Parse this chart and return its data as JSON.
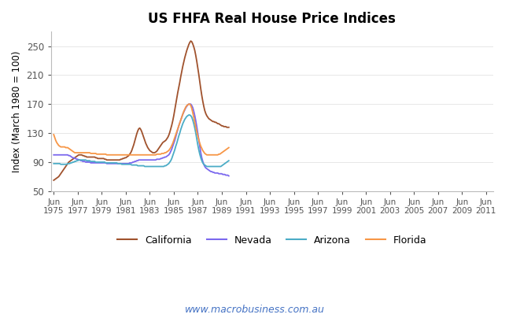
{
  "title": "US FHFA Real House Price Indices",
  "ylabel": "Index (March 1980 = 100)",
  "watermark": "www.macrobusiness.com.au",
  "ylim": [
    50,
    270
  ],
  "yticks": [
    50,
    90,
    130,
    170,
    210,
    250
  ],
  "background_color": "#ffffff",
  "series_order": [
    "California",
    "Nevada",
    "Arizona",
    "Florida"
  ],
  "series": {
    "California": {
      "color": "#A0522D",
      "data": [
        65,
        66,
        67,
        68,
        69,
        70,
        72,
        74,
        76,
        78,
        80,
        82,
        84,
        86,
        88,
        90,
        91,
        92,
        93,
        94,
        95,
        96,
        97,
        98,
        99,
        100,
        100,
        100,
        100,
        99,
        99,
        98,
        98,
        97,
        97,
        97,
        97,
        97,
        97,
        97,
        97,
        97,
        96,
        96,
        95,
        95,
        95,
        95,
        95,
        95,
        95,
        94,
        94,
        93,
        93,
        93,
        93,
        93,
        93,
        93,
        93,
        93,
        93,
        93,
        93,
        93,
        93,
        94,
        94,
        95,
        95,
        96,
        96,
        97,
        98,
        99,
        101,
        103,
        106,
        110,
        114,
        119,
        124,
        129,
        133,
        136,
        137,
        135,
        132,
        128,
        124,
        120,
        116,
        113,
        110,
        108,
        106,
        105,
        104,
        103,
        103,
        103,
        104,
        105,
        107,
        109,
        111,
        113,
        115,
        117,
        118,
        119,
        120,
        122,
        124,
        127,
        131,
        136,
        141,
        147,
        154,
        162,
        170,
        178,
        186,
        193,
        200,
        208,
        215,
        222,
        228,
        234,
        239,
        244,
        248,
        252,
        255,
        257,
        256,
        253,
        249,
        244,
        237,
        229,
        220,
        211,
        201,
        191,
        182,
        174,
        167,
        161,
        157,
        154,
        152,
        150,
        149,
        148,
        147,
        146,
        146,
        145,
        145,
        144,
        143,
        143,
        142,
        141,
        140,
        140,
        139,
        139,
        139,
        138,
        138,
        138
      ]
    },
    "Nevada": {
      "color": "#7B68EE",
      "data": [
        100,
        100,
        100,
        100,
        100,
        100,
        100,
        100,
        100,
        100,
        100,
        100,
        100,
        100,
        100,
        99,
        99,
        98,
        97,
        96,
        96,
        95,
        95,
        94,
        94,
        93,
        93,
        92,
        92,
        91,
        91,
        91,
        90,
        90,
        90,
        90,
        90,
        89,
        89,
        89,
        89,
        89,
        89,
        89,
        89,
        89,
        89,
        89,
        89,
        89,
        89,
        89,
        89,
        88,
        88,
        88,
        88,
        88,
        88,
        88,
        88,
        88,
        88,
        88,
        88,
        88,
        88,
        88,
        88,
        88,
        88,
        88,
        88,
        88,
        88,
        88,
        89,
        89,
        89,
        90,
        90,
        91,
        91,
        92,
        92,
        93,
        93,
        93,
        93,
        93,
        93,
        93,
        93,
        93,
        93,
        93,
        93,
        93,
        93,
        93,
        93,
        93,
        93,
        94,
        94,
        94,
        94,
        95,
        95,
        96,
        96,
        97,
        97,
        98,
        99,
        100,
        102,
        105,
        108,
        112,
        116,
        120,
        125,
        130,
        135,
        140,
        144,
        148,
        152,
        156,
        159,
        162,
        165,
        167,
        169,
        170,
        170,
        170,
        168,
        165,
        160,
        154,
        147,
        139,
        130,
        121,
        112,
        103,
        96,
        91,
        87,
        84,
        82,
        81,
        80,
        79,
        78,
        77,
        77,
        76,
        76,
        75,
        75,
        75,
        75,
        74,
        74,
        74,
        74,
        73,
        73,
        73,
        72,
        72,
        72,
        71
      ]
    },
    "Arizona": {
      "color": "#4BACC6",
      "data": [
        88,
        88,
        88,
        88,
        88,
        88,
        88,
        87,
        87,
        87,
        87,
        87,
        87,
        87,
        88,
        88,
        88,
        89,
        89,
        90,
        90,
        91,
        91,
        92,
        92,
        93,
        93,
        93,
        93,
        93,
        93,
        93,
        93,
        92,
        92,
        92,
        92,
        91,
        91,
        91,
        91,
        91,
        90,
        90,
        90,
        90,
        90,
        90,
        90,
        90,
        90,
        90,
        89,
        89,
        89,
        89,
        89,
        89,
        89,
        89,
        89,
        89,
        89,
        89,
        88,
        88,
        88,
        88,
        87,
        87,
        87,
        87,
        87,
        87,
        87,
        87,
        87,
        87,
        86,
        86,
        86,
        86,
        86,
        86,
        85,
        85,
        85,
        85,
        85,
        85,
        85,
        84,
        84,
        84,
        84,
        84,
        84,
        84,
        84,
        84,
        84,
        84,
        84,
        84,
        84,
        84,
        84,
        84,
        84,
        84,
        84,
        85,
        85,
        86,
        87,
        88,
        90,
        92,
        95,
        99,
        103,
        107,
        112,
        116,
        121,
        126,
        130,
        135,
        139,
        143,
        146,
        149,
        151,
        153,
        154,
        155,
        155,
        154,
        152,
        148,
        143,
        137,
        130,
        122,
        114,
        107,
        101,
        96,
        92,
        89,
        87,
        86,
        85,
        84,
        84,
        84,
        84,
        84,
        84,
        84,
        84,
        84,
        84,
        84,
        84,
        84,
        84,
        84,
        85,
        86,
        87,
        88,
        89,
        90,
        91,
        92
      ]
    },
    "Florida": {
      "color": "#F79646",
      "data": [
        128,
        124,
        120,
        117,
        115,
        113,
        112,
        111,
        111,
        111,
        111,
        111,
        110,
        110,
        110,
        109,
        108,
        107,
        106,
        105,
        104,
        103,
        103,
        103,
        103,
        103,
        103,
        103,
        103,
        103,
        103,
        103,
        103,
        103,
        103,
        103,
        103,
        102,
        102,
        102,
        102,
        102,
        102,
        101,
        101,
        101,
        101,
        101,
        101,
        101,
        101,
        101,
        101,
        100,
        100,
        100,
        100,
        100,
        100,
        100,
        100,
        100,
        100,
        100,
        100,
        100,
        100,
        100,
        100,
        100,
        100,
        100,
        100,
        100,
        100,
        100,
        100,
        100,
        100,
        100,
        100,
        100,
        100,
        100,
        100,
        100,
        100,
        100,
        100,
        100,
        100,
        100,
        100,
        100,
        100,
        100,
        100,
        100,
        100,
        100,
        100,
        100,
        100,
        101,
        101,
        101,
        101,
        101,
        102,
        102,
        102,
        103,
        103,
        104,
        105,
        106,
        108,
        110,
        113,
        116,
        120,
        124,
        128,
        132,
        136,
        140,
        144,
        148,
        152,
        156,
        160,
        163,
        166,
        168,
        169,
        170,
        170,
        168,
        164,
        158,
        152,
        145,
        138,
        132,
        126,
        121,
        116,
        112,
        109,
        106,
        104,
        102,
        101,
        100,
        100,
        100,
        100,
        100,
        100,
        100,
        100,
        100,
        100,
        100,
        100,
        101,
        101,
        102,
        103,
        104,
        105,
        106,
        107,
        108,
        109,
        110
      ]
    }
  },
  "x_start": 1975.417,
  "x_step": 0.0833,
  "xtick_years": [
    1975,
    1977,
    1979,
    1981,
    1983,
    1985,
    1987,
    1989,
    1991,
    1993,
    1995,
    1997,
    1999,
    2001,
    2003,
    2005,
    2007,
    2009,
    2011
  ],
  "legend_entries": [
    "California",
    "Nevada",
    "Arizona",
    "Florida"
  ],
  "legend_colors": [
    "#A0522D",
    "#7B68EE",
    "#4BACC6",
    "#F79646"
  ]
}
